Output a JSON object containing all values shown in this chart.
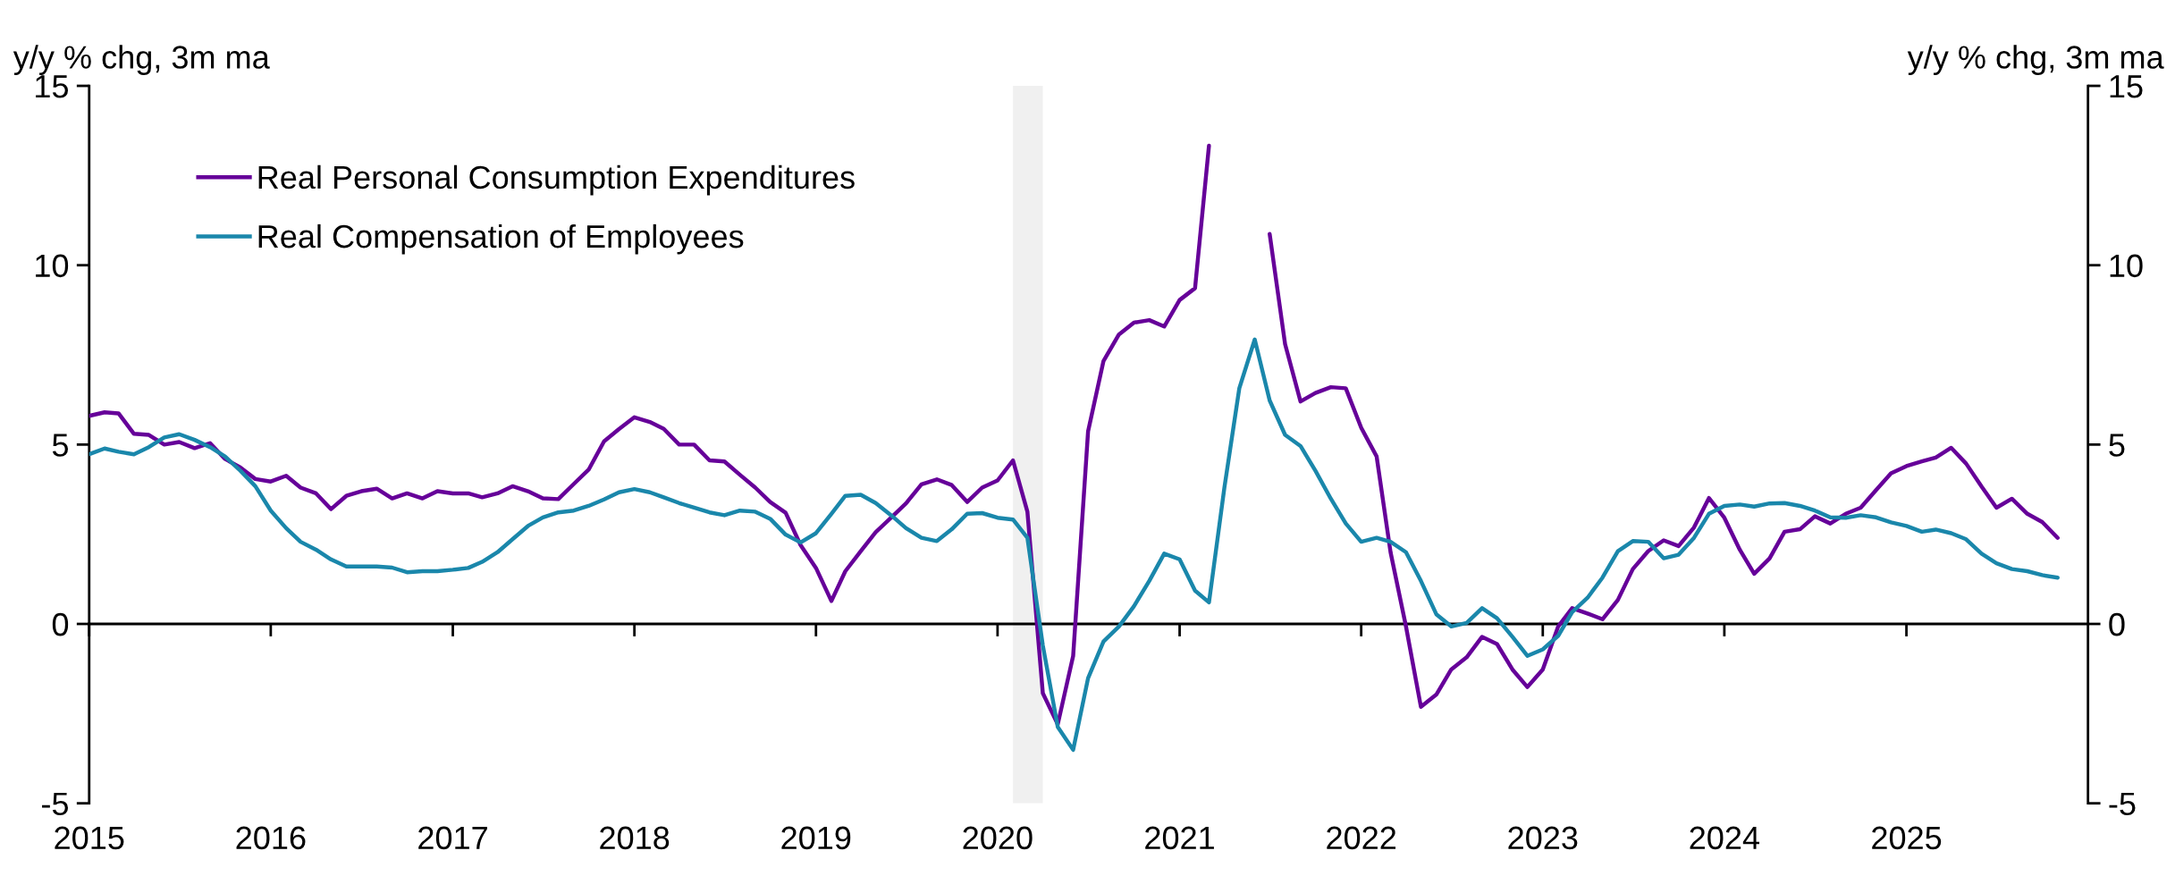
{
  "chart_data": {
    "type": "line",
    "ylabel": "y/y % chg, 3m ma",
    "y2label": "y/y % chg, 3m ma",
    "x": [
      "2015-01",
      "2015-02",
      "2015-03",
      "2015-04",
      "2015-05",
      "2015-06",
      "2015-07",
      "2015-08",
      "2015-09",
      "2015-10",
      "2015-11",
      "2015-12",
      "2016-01",
      "2016-02",
      "2016-03",
      "2016-04",
      "2016-05",
      "2016-06",
      "2016-07",
      "2016-08",
      "2016-09",
      "2016-10",
      "2016-11",
      "2016-12",
      "2017-01",
      "2017-02",
      "2017-03",
      "2017-04",
      "2017-05",
      "2017-06",
      "2017-07",
      "2017-08",
      "2017-09",
      "2017-10",
      "2017-11",
      "2017-12",
      "2018-01",
      "2018-02",
      "2018-03",
      "2018-04",
      "2018-05",
      "2018-06",
      "2018-07",
      "2018-08",
      "2018-09",
      "2018-10",
      "2018-11",
      "2018-12",
      "2019-01",
      "2019-02",
      "2019-03",
      "2019-04",
      "2019-05",
      "2019-06",
      "2019-07",
      "2019-08",
      "2019-09",
      "2019-10",
      "2019-11",
      "2019-12",
      "2020-01",
      "2020-02",
      "2020-03",
      "2020-04",
      "2020-05",
      "2020-06",
      "2020-07",
      "2020-08",
      "2020-09",
      "2020-10",
      "2020-11",
      "2020-12",
      "2021-01",
      "2021-02",
      "2021-03",
      "2021-04",
      "2021-05",
      "2021-06",
      "2021-07",
      "2021-08",
      "2021-09",
      "2021-10",
      "2021-11",
      "2021-12",
      "2022-01",
      "2022-02",
      "2022-03",
      "2022-04",
      "2022-05",
      "2022-06",
      "2022-07",
      "2022-08",
      "2022-09",
      "2022-10",
      "2022-11",
      "2022-12",
      "2023-01",
      "2023-02",
      "2023-03",
      "2023-04",
      "2023-05",
      "2023-06",
      "2023-07",
      "2023-08",
      "2023-09",
      "2023-10",
      "2023-11",
      "2023-12",
      "2024-01",
      "2024-02",
      "2024-03",
      "2024-04",
      "2024-05",
      "2024-06",
      "2024-07",
      "2024-08",
      "2024-09",
      "2024-10",
      "2024-11",
      "2024-12",
      "2025-01",
      "2025-02",
      "2025-03",
      "2025-04",
      "2025-05",
      "2025-06",
      "2025-07",
      "2025-08",
      "2025-09",
      "2025-10",
      "2025-11"
    ],
    "series": [
      {
        "name": "Real Personal Consumption Expenditures",
        "color": "#660099",
        "values": [
          5.8,
          5.9,
          5.87,
          5.3,
          5.27,
          5.0,
          5.07,
          4.9,
          5.04,
          4.6,
          4.36,
          4.04,
          3.97,
          4.13,
          3.8,
          3.64,
          3.2,
          3.57,
          3.7,
          3.77,
          3.5,
          3.64,
          3.5,
          3.7,
          3.64,
          3.64,
          3.53,
          3.64,
          3.84,
          3.7,
          3.5,
          3.48,
          3.9,
          4.3,
          5.09,
          5.43,
          5.76,
          5.63,
          5.44,
          5.0,
          5.0,
          4.56,
          4.53,
          4.16,
          3.8,
          3.4,
          3.1,
          2.2,
          1.56,
          0.64,
          1.47,
          2.03,
          2.56,
          2.96,
          3.36,
          3.89,
          4.03,
          3.87,
          3.4,
          3.8,
          4.0,
          4.56,
          3.13,
          -1.93,
          -2.8,
          -0.89,
          5.37,
          7.33,
          8.07,
          8.4,
          8.47,
          8.29,
          9.03,
          9.36,
          13.33,
          null,
          null,
          null,
          10.87,
          7.8,
          6.2,
          6.44,
          6.6,
          6.57,
          5.47,
          4.67,
          2.0,
          -0.07,
          -2.31,
          -1.97,
          -1.27,
          -0.93,
          -0.36,
          -0.56,
          -1.27,
          -1.76,
          -1.27,
          -0.07,
          0.44,
          0.29,
          0.13,
          0.67,
          1.53,
          2.03,
          2.33,
          2.17,
          2.69,
          3.51,
          2.96,
          2.07,
          1.4,
          1.83,
          2.57,
          2.64,
          3.0,
          2.8,
          3.07,
          3.24,
          3.73,
          4.2,
          4.4,
          4.53,
          4.64,
          4.91,
          4.47,
          3.83,
          3.24,
          3.49,
          3.07,
          2.84,
          2.4
        ]
      },
      {
        "name": "Real Compensation of Employees",
        "color": "#1a87ab",
        "values": [
          4.73,
          4.89,
          4.8,
          4.73,
          4.93,
          5.2,
          5.29,
          5.13,
          4.93,
          4.67,
          4.27,
          3.84,
          3.16,
          2.67,
          2.29,
          2.07,
          1.8,
          1.6,
          1.6,
          1.6,
          1.57,
          1.44,
          1.47,
          1.47,
          1.51,
          1.56,
          1.73,
          2.0,
          2.36,
          2.73,
          2.97,
          3.11,
          3.16,
          3.29,
          3.47,
          3.67,
          3.76,
          3.67,
          3.53,
          3.37,
          3.24,
          3.11,
          3.03,
          3.16,
          3.13,
          2.93,
          2.49,
          2.27,
          2.53,
          3.07,
          3.57,
          3.6,
          3.37,
          3.03,
          2.67,
          2.4,
          2.31,
          2.64,
          3.07,
          3.09,
          2.96,
          2.91,
          2.4,
          -0.6,
          -2.87,
          -3.51,
          -1.51,
          -0.49,
          -0.07,
          0.49,
          1.2,
          1.96,
          1.8,
          0.93,
          0.6,
          3.8,
          6.57,
          7.93,
          6.23,
          5.27,
          4.96,
          4.27,
          3.49,
          2.8,
          2.29,
          2.4,
          2.29,
          2.0,
          1.2,
          0.27,
          -0.07,
          0.03,
          0.44,
          0.16,
          -0.36,
          -0.89,
          -0.71,
          -0.33,
          0.33,
          0.73,
          1.29,
          2.03,
          2.31,
          2.29,
          1.83,
          1.93,
          2.4,
          3.07,
          3.29,
          3.33,
          3.27,
          3.36,
          3.37,
          3.29,
          3.16,
          2.97,
          2.96,
          3.03,
          2.97,
          2.83,
          2.73,
          2.57,
          2.63,
          2.53,
          2.36,
          1.96,
          1.69,
          1.53,
          1.47,
          1.36,
          1.29
        ]
      }
    ],
    "xlim": [
      "2015-01",
      "2026-01"
    ],
    "xticks": [
      "2015",
      "2016",
      "2017",
      "2018",
      "2019",
      "2020",
      "2021",
      "2022",
      "2023",
      "2024",
      "2025"
    ],
    "ylim": [
      -5,
      15
    ],
    "yticks": [
      -5,
      0,
      5,
      10,
      15
    ],
    "y2lim": [
      -5,
      15
    ],
    "y2ticks": [
      -5,
      0,
      5,
      10,
      15
    ],
    "bands": [
      {
        "axis": "x",
        "from": "2020-02",
        "to": "2020-04",
        "color": "#f0f0f0"
      }
    ],
    "legend": "top left"
  }
}
